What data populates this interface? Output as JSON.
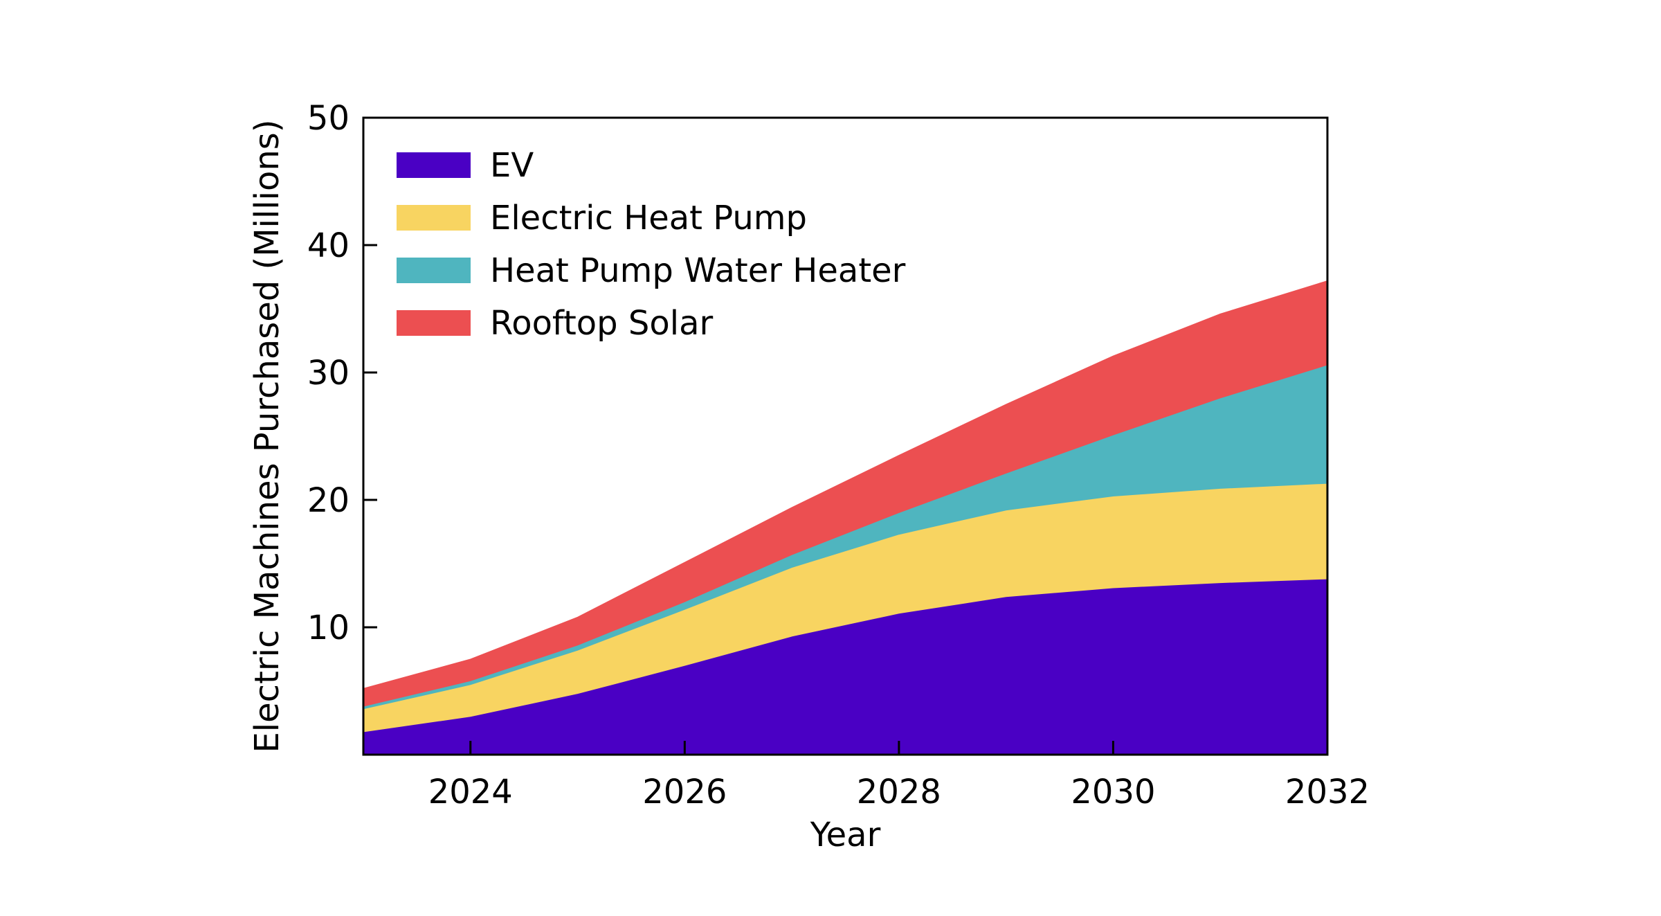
{
  "chart_data": {
    "type": "area",
    "stacked": true,
    "title": "",
    "xlabel": "Year",
    "ylabel": "Electric Machines Purchased (Millions)",
    "xlim": [
      2023,
      2032
    ],
    "ylim": [
      0,
      50
    ],
    "x": [
      2023,
      2024,
      2025,
      2026,
      2027,
      2028,
      2029,
      2030,
      2031,
      2032
    ],
    "x_ticks": [
      2024,
      2026,
      2028,
      2030,
      2032
    ],
    "y_ticks": [
      10,
      20,
      30,
      40,
      50
    ],
    "grid": false,
    "legend_position": "top-left",
    "series": [
      {
        "name": "EV",
        "color": "#4a00c4",
        "values": [
          1.8,
          3.0,
          4.8,
          7.0,
          9.3,
          11.1,
          12.4,
          13.1,
          13.5,
          13.8
        ]
      },
      {
        "name": "Electric Heat Pump",
        "color": "#f8d461",
        "values": [
          1.8,
          2.5,
          3.4,
          4.4,
          5.4,
          6.2,
          6.8,
          7.2,
          7.4,
          7.5
        ]
      },
      {
        "name": "Heat Pump Water Heater",
        "color": "#4fb5bf",
        "values": [
          0.2,
          0.3,
          0.4,
          0.6,
          1.0,
          1.7,
          2.9,
          4.8,
          7.1,
          9.3
        ]
      },
      {
        "name": "Rooftop Solar",
        "color": "#ec4f51",
        "values": [
          1.4,
          1.7,
          2.2,
          3.1,
          3.7,
          4.5,
          5.4,
          6.2,
          6.6,
          6.6
        ]
      }
    ]
  }
}
